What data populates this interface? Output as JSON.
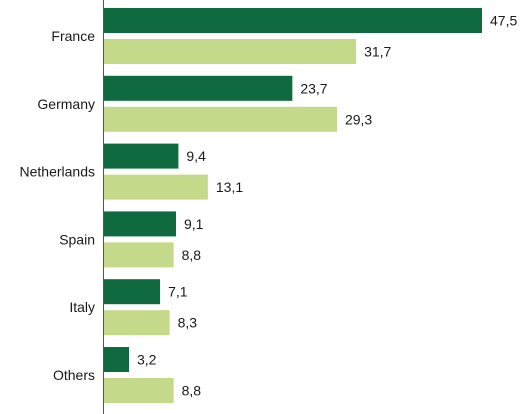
{
  "chart_data": {
    "type": "bar",
    "orientation": "horizontal",
    "categories": [
      "France",
      "Germany",
      "Netherlands",
      "Spain",
      "Italy",
      "Others"
    ],
    "series": [
      {
        "values": [
          47.5,
          23.7,
          9.4,
          9.1,
          7.1,
          3.2
        ],
        "color": "#0f6b3f"
      },
      {
        "values": [
          31.7,
          29.3,
          13.1,
          8.8,
          8.3,
          8.8
        ],
        "color": "#c5d98a"
      }
    ],
    "value_labels": [
      [
        "47,5",
        "23,7",
        "9,4",
        "9,1",
        "7,1",
        "3,2"
      ],
      [
        "31,7",
        "29,3",
        "13,1",
        "8,8",
        "8,3",
        "8,8"
      ]
    ],
    "xlim": [
      0,
      50
    ],
    "grid": false,
    "legend": "none"
  }
}
